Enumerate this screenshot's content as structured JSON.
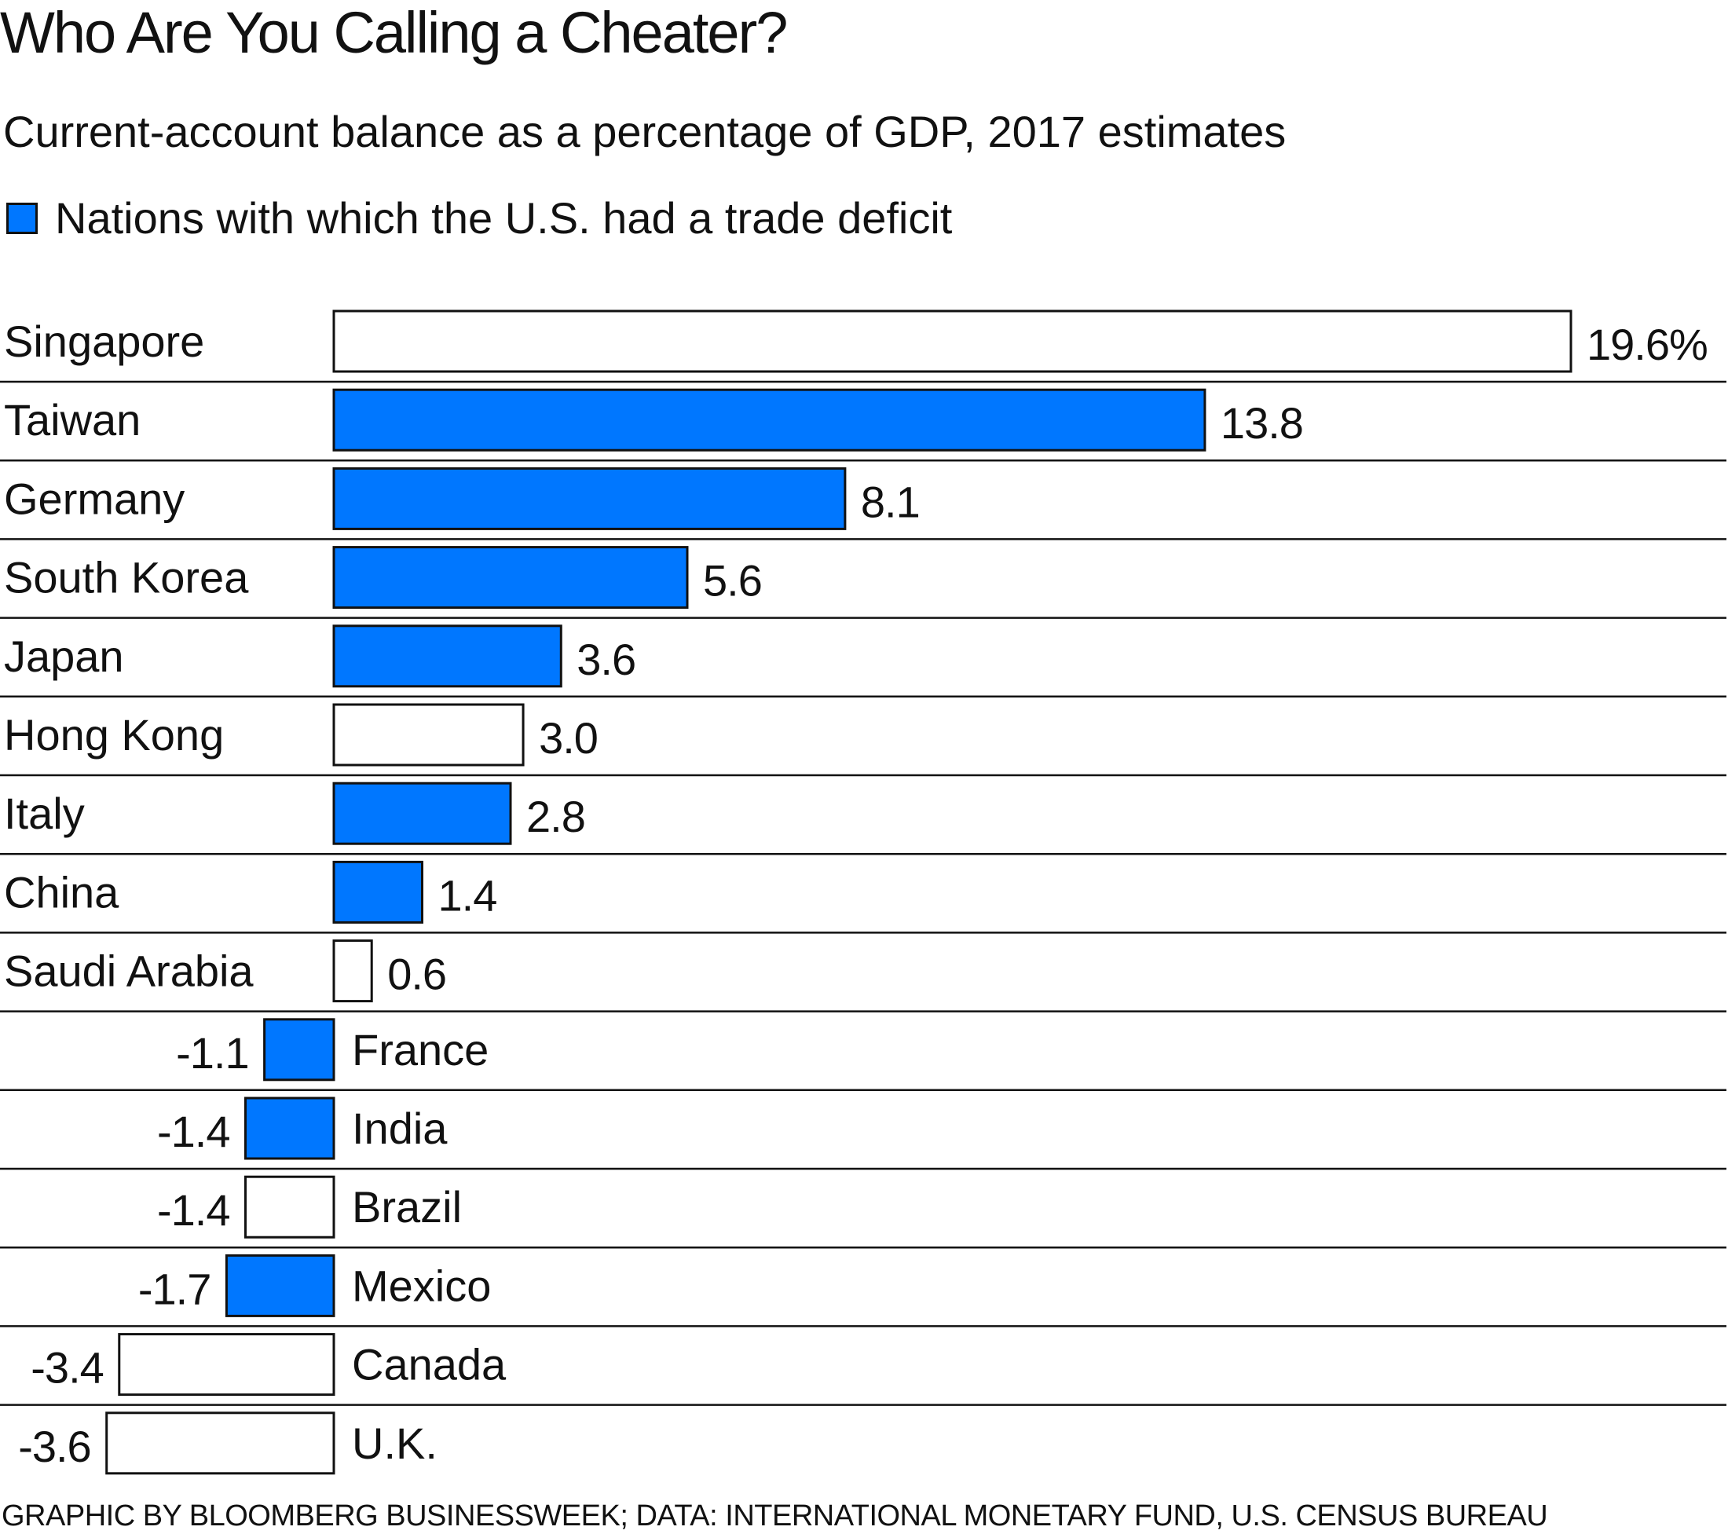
{
  "title": "Who Are You Calling a Cheater?",
  "subtitle": "Current-account balance as a percentage of GDP, 2017 estimates",
  "legend": {
    "label": "Nations with which the U.S. had a trade deficit",
    "color": "#0077FF"
  },
  "source": "GRAPHIC BY BLOOMBERG BUSINESSWEEK; DATA: INTERNATIONAL MONETARY FUND, U.S. CENSUS BUREAU",
  "colors": {
    "deficit": "#0077FF",
    "other": "#FFFFFF",
    "outline": "#111111",
    "rule": "#111111"
  },
  "chart_data": {
    "type": "bar",
    "orientation": "horizontal",
    "categories": [
      "Singapore",
      "Taiwan",
      "Germany",
      "South Korea",
      "Japan",
      "Hong Kong",
      "Italy",
      "China",
      "Saudi Arabia",
      "France",
      "India",
      "Brazil",
      "Mexico",
      "Canada",
      "U.K."
    ],
    "values": [
      19.6,
      13.8,
      8.1,
      5.6,
      3.6,
      3.0,
      2.8,
      1.4,
      0.6,
      -1.1,
      -1.4,
      -1.4,
      -1.7,
      -3.4,
      -3.6
    ],
    "value_labels": [
      "19.6%",
      "13.8",
      "8.1",
      "5.6",
      "3.6",
      "3.0",
      "2.8",
      "1.4",
      "0.6",
      "-1.1",
      "-1.4",
      "-1.4",
      "-1.7",
      "-3.4",
      "-3.6"
    ],
    "us_trade_deficit": [
      false,
      true,
      true,
      true,
      true,
      false,
      true,
      true,
      false,
      true,
      true,
      false,
      true,
      false,
      false
    ],
    "unit": "% of GDP",
    "xlim": [
      -5.2,
      19.6
    ]
  }
}
